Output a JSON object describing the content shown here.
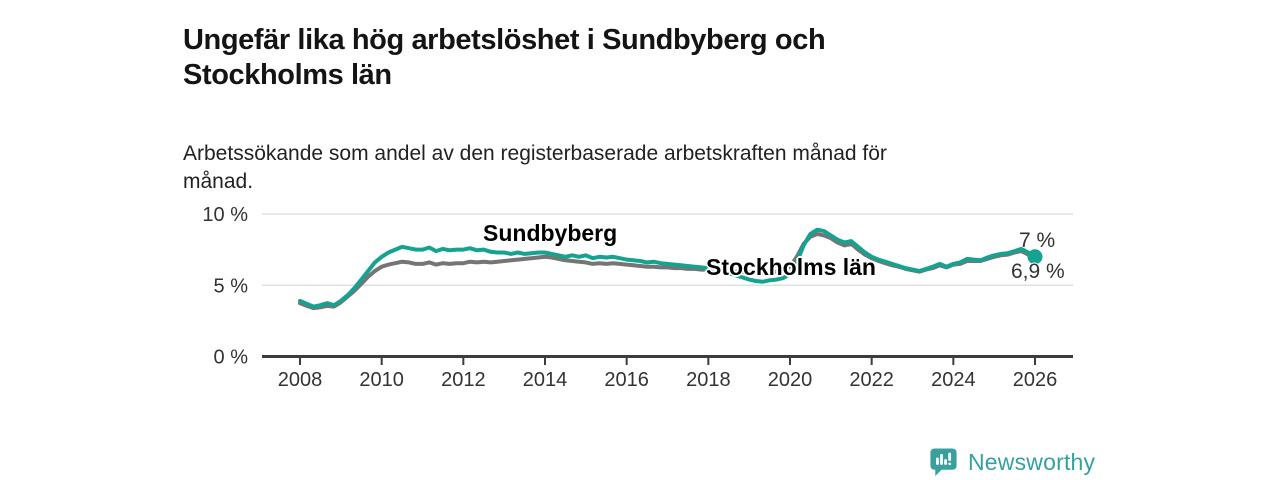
{
  "header": {
    "title": "Ungefär lika hög arbetslöshet i Sundbyberg och Stockholms län",
    "subtitle": "Arbetssökande som andel av den registerbaserade arbetskraften månad för månad."
  },
  "chart_data": {
    "type": "line",
    "title": "Ungefär lika hög arbetslöshet i Sundbyberg och Stockholms län",
    "xlabel": "",
    "ylabel": "",
    "x_unit": "year, monthly data",
    "x_start_year": 2008,
    "x_step_years": 0.16667,
    "x_tick_years": [
      2008,
      2010,
      2012,
      2014,
      2016,
      2018,
      2020,
      2022,
      2024,
      2026
    ],
    "x_tick_labels": [
      "2008",
      "2010",
      "2012",
      "2014",
      "2016",
      "2018",
      "2020",
      "2022",
      "2024",
      "2026"
    ],
    "y_tick_values": [
      0,
      5,
      10
    ],
    "y_tick_labels": [
      "0 %",
      "5 %",
      "10 %"
    ],
    "ylim": [
      0,
      10.5
    ],
    "grid": "horizontal",
    "legend_position": "inline-labels",
    "axis_color": "#3c3c3c",
    "grid_color": "#d9d9d9",
    "tick_text_color": "#333333",
    "series": [
      {
        "name": "Stockholms län",
        "label_text": "Stockholms län",
        "color": "#757575",
        "label_color": "#6b6b6b",
        "end_label": "6,9 %",
        "end_value": 6.9,
        "values": [
          3.75,
          3.55,
          3.4,
          3.45,
          3.55,
          3.5,
          3.8,
          4.2,
          4.6,
          5.1,
          5.6,
          6.0,
          6.3,
          6.45,
          6.55,
          6.65,
          6.6,
          6.5,
          6.5,
          6.6,
          6.45,
          6.55,
          6.5,
          6.55,
          6.55,
          6.65,
          6.6,
          6.65,
          6.6,
          6.65,
          6.7,
          6.75,
          6.8,
          6.85,
          6.9,
          6.95,
          7.0,
          6.95,
          6.85,
          6.75,
          6.7,
          6.65,
          6.6,
          6.5,
          6.55,
          6.5,
          6.55,
          6.5,
          6.45,
          6.4,
          6.35,
          6.3,
          6.3,
          6.25,
          6.25,
          6.2,
          6.2,
          6.15,
          6.15,
          6.1,
          6.1,
          6.05,
          6.0,
          6.0,
          5.95,
          5.95,
          5.9,
          5.9,
          5.85,
          5.9,
          5.95,
          6.05,
          6.3,
          7.0,
          7.9,
          8.4,
          8.6,
          8.5,
          8.3,
          8.0,
          7.8,
          7.9,
          7.5,
          7.15,
          6.9,
          6.7,
          6.55,
          6.4,
          6.3,
          6.15,
          6.05,
          5.95,
          6.1,
          6.2,
          6.4,
          6.25,
          6.45,
          6.5,
          6.7,
          6.7,
          6.7,
          6.85,
          7.0,
          7.1,
          7.15,
          7.3,
          7.4,
          7.15,
          6.9
        ]
      },
      {
        "name": "Sundbyberg",
        "label_text": "Sundbyberg",
        "color": "#16a291",
        "label_color": "#16a291",
        "end_label": "7 %",
        "end_value": 7.0,
        "end_marker": "circle",
        "values": [
          3.9,
          3.7,
          3.5,
          3.6,
          3.75,
          3.6,
          3.9,
          4.3,
          4.8,
          5.4,
          6.0,
          6.6,
          7.0,
          7.3,
          7.5,
          7.7,
          7.6,
          7.5,
          7.5,
          7.65,
          7.4,
          7.55,
          7.45,
          7.5,
          7.5,
          7.6,
          7.45,
          7.5,
          7.35,
          7.3,
          7.3,
          7.2,
          7.3,
          7.2,
          7.25,
          7.3,
          7.3,
          7.2,
          7.1,
          7.0,
          7.1,
          7.0,
          7.1,
          6.9,
          7.0,
          6.95,
          7.0,
          6.9,
          6.8,
          6.75,
          6.7,
          6.6,
          6.65,
          6.55,
          6.5,
          6.45,
          6.4,
          6.35,
          6.3,
          6.25,
          6.2,
          6.1,
          6.0,
          5.85,
          5.7,
          5.55,
          5.4,
          5.3,
          5.25,
          5.35,
          5.4,
          5.5,
          5.8,
          6.6,
          7.8,
          8.6,
          8.9,
          8.8,
          8.5,
          8.2,
          8.0,
          8.1,
          7.7,
          7.3,
          7.0,
          6.8,
          6.65,
          6.5,
          6.35,
          6.2,
          6.1,
          6.0,
          6.15,
          6.3,
          6.5,
          6.3,
          6.5,
          6.6,
          6.85,
          6.8,
          6.75,
          6.95,
          7.1,
          7.2,
          7.25,
          7.4,
          7.55,
          7.3,
          7.0
        ]
      }
    ]
  },
  "footer": {
    "brand": "Newsworthy",
    "brand_color": "#35a19e",
    "logo_icon": "newsworthy-speech-bubble-bar-chart-icon"
  }
}
